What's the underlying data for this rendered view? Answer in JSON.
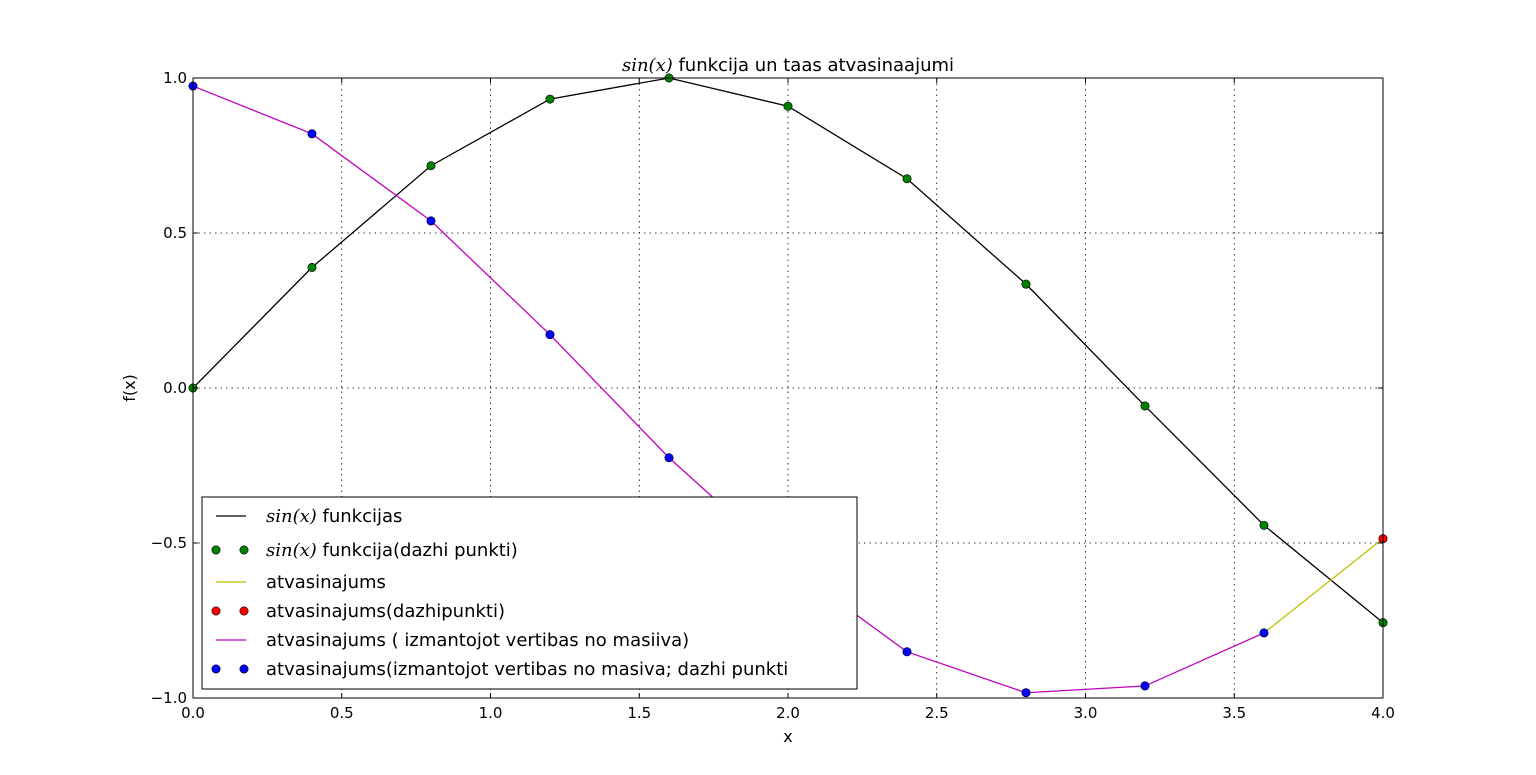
{
  "chart_data": {
    "type": "line",
    "title_math": "sin(x)",
    "title_rest": " funkcija un taas atvasinaajumi",
    "xlabel": "x",
    "ylabel": "f(x)",
    "xlim": [
      0.0,
      4.0
    ],
    "ylim": [
      -1.0,
      1.0
    ],
    "xticks": [
      "0.0",
      "0.5",
      "1.0",
      "1.5",
      "2.0",
      "2.5",
      "3.0",
      "3.5",
      "4.0"
    ],
    "yticks": [
      "−1.0",
      "−0.5",
      "0.0",
      "0.5",
      "1.0"
    ],
    "grid": true,
    "legend_placement": "lower-left",
    "x": [
      0.0,
      0.4,
      0.8,
      1.2,
      1.6,
      2.0,
      2.4,
      2.8,
      3.2,
      3.6,
      4.0
    ],
    "series": [
      {
        "name_math": "sin(x)",
        "name_rest": " funkcijas",
        "style": "line",
        "color": "#000000",
        "x": [
          0.0,
          0.4,
          0.8,
          1.2,
          1.6,
          2.0,
          2.4,
          2.8,
          3.2,
          3.6,
          4.0
        ],
        "values": [
          0.0,
          0.389,
          0.717,
          0.932,
          1.0,
          0.909,
          0.675,
          0.335,
          -0.058,
          -0.443,
          -0.757
        ]
      },
      {
        "name_math": "sin(x)",
        "name_rest": " funkcija(dazhi punkti)",
        "style": "points",
        "color": "#008000",
        "x": [
          0.0,
          0.4,
          0.8,
          1.2,
          1.6,
          2.0,
          2.4,
          2.8,
          3.2,
          3.6,
          4.0
        ],
        "values": [
          0.0,
          0.389,
          0.717,
          0.932,
          1.0,
          0.909,
          0.675,
          0.335,
          -0.058,
          -0.443,
          -0.757
        ]
      },
      {
        "name": "atvasinajums",
        "style": "line",
        "color": "#bfbf00",
        "x": [
          3.6,
          4.0
        ],
        "values": [
          -0.79,
          -0.486
        ]
      },
      {
        "name": "atvasinajums(dazhipunkti)",
        "style": "points",
        "color": "#ff0000",
        "x": [
          4.0
        ],
        "values": [
          -0.486
        ]
      },
      {
        "name": "atvasinajums ( izmantojot vertibas no masiiva)",
        "style": "line",
        "color": "#bf00bf",
        "x": [
          0.0,
          0.4,
          0.8,
          1.2,
          1.6,
          2.0,
          2.4,
          2.8,
          3.2,
          3.6
        ],
        "values": [
          0.974,
          0.82,
          0.539,
          0.172,
          -0.225,
          -0.571,
          -0.851,
          -0.983,
          -0.961,
          -0.79
        ]
      },
      {
        "name": "atvasinajums(izmantojot vertibas no masiva; dazhi punkti",
        "style": "points",
        "color": "#0000ff",
        "x": [
          0.0,
          0.4,
          0.8,
          1.2,
          1.6,
          2.0,
          2.4,
          2.8,
          3.2,
          3.6
        ],
        "values": [
          0.974,
          0.82,
          0.539,
          0.172,
          -0.225,
          -0.571,
          -0.851,
          -0.983,
          -0.961,
          -0.79
        ]
      }
    ]
  }
}
